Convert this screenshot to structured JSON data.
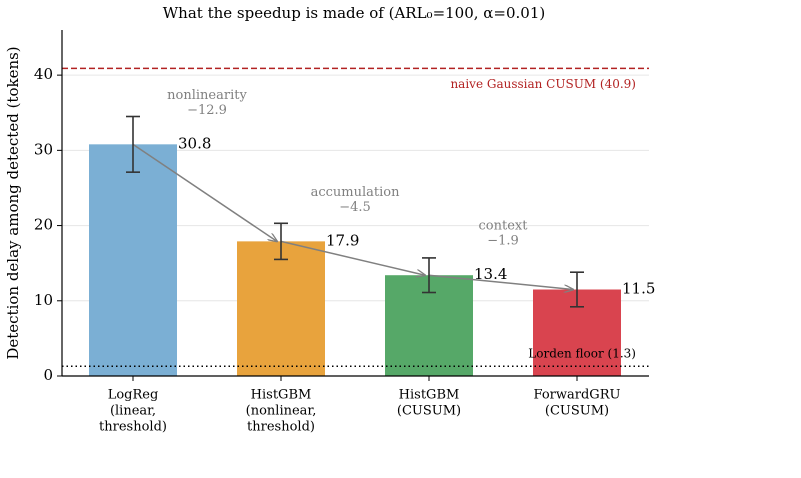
{
  "chart_data": {
    "type": "bar",
    "title": "What the speedup is made of (ARL₀=100, α=0.01)",
    "ylabel": "Detection delay among detected (tokens)",
    "categories": [
      [
        "LogReg",
        "(linear,",
        "threshold)"
      ],
      [
        "HistGBM",
        "(nonlinear,",
        "threshold)"
      ],
      [
        "HistGBM",
        "(CUSUM)"
      ],
      [
        "ForwardGRU",
        "(CUSUM)"
      ]
    ],
    "values": [
      30.8,
      17.9,
      13.4,
      11.5
    ],
    "errors": [
      3.7,
      2.4,
      2.3,
      2.3
    ],
    "colors": [
      "#7bafd4",
      "#e8a33d",
      "#56a868",
      "#d9444f"
    ],
    "steps": [
      {
        "name": "nonlinearity",
        "value": -12.9,
        "label": "−12.9"
      },
      {
        "name": "accumulation",
        "value": -4.5,
        "label": "−4.5"
      },
      {
        "name": "context",
        "value": -1.9,
        "label": "−1.9"
      }
    ],
    "reference_lines": [
      {
        "label": "naive Gaussian CUSUM (40.9)",
        "value": 40.9,
        "color": "#b22222",
        "style": "dashed"
      },
      {
        "label": "Lorden floor (1.3)",
        "value": 1.3,
        "color": "#000000",
        "style": "dotted"
      }
    ],
    "ylim": [
      0,
      46
    ],
    "yticks": [
      0,
      10,
      20,
      30,
      40
    ],
    "grid": true
  }
}
